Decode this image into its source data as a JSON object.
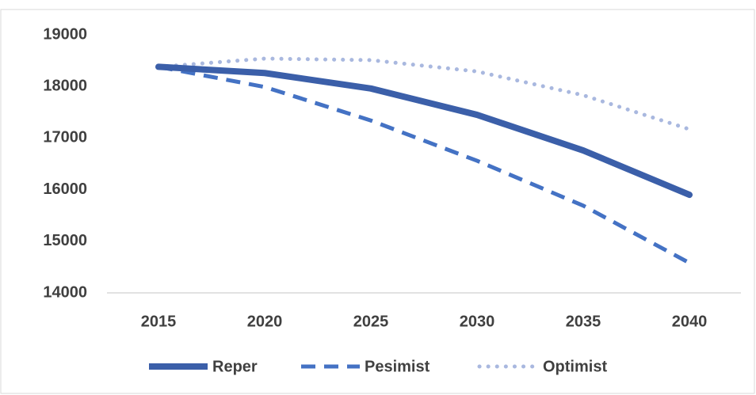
{
  "chart_data": {
    "type": "line",
    "categories": [
      "2015",
      "2020",
      "2025",
      "2030",
      "2035",
      "2040"
    ],
    "series": [
      {
        "name": "Reper",
        "color": "#3b5fa9",
        "style": "solid",
        "values": [
          18380,
          18260,
          17960,
          17450,
          16760,
          15900
        ]
      },
      {
        "name": "Pesimist",
        "color": "#4472c4",
        "style": "dashed",
        "values": [
          18380,
          17990,
          17340,
          16560,
          15690,
          14580
        ]
      },
      {
        "name": "Optimist",
        "color": "#a9b8df",
        "style": "dotted",
        "values": [
          18380,
          18540,
          18510,
          18290,
          17830,
          17170
        ]
      }
    ],
    "ylim": [
      14000,
      19000
    ],
    "yticks": [
      14000,
      15000,
      16000,
      17000,
      18000,
      19000
    ],
    "grid": false,
    "legend": "bottom"
  }
}
